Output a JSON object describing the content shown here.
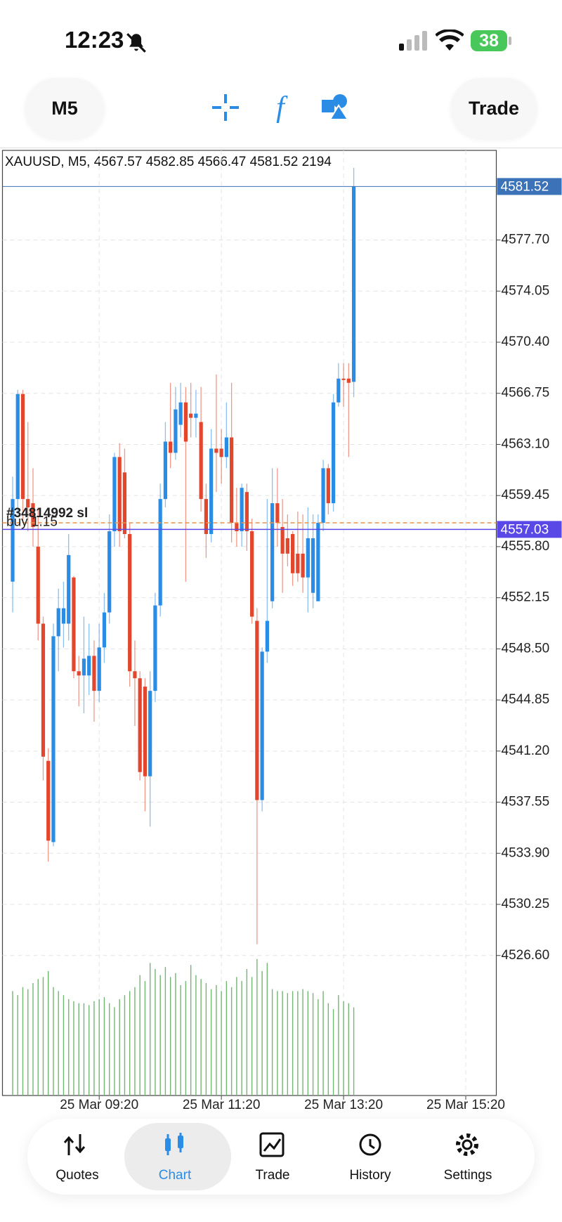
{
  "status_bar": {
    "time": "12:23",
    "battery": "38"
  },
  "toolbar": {
    "timeframe": "M5",
    "trade": "Trade"
  },
  "chart_data": {
    "type": "candlestick",
    "symbol": "XAUUSD",
    "timeframe": "M5",
    "open": [
      4553.3,
      4559.2,
      4566.7,
      4559.2,
      4558.9,
      4555.8,
      4550.3,
      4540.5,
      4534.7,
      4549.4,
      4550.3,
      4550.3,
      4553.6,
      4546.9,
      4546.6,
      4546.6,
      4548.0,
      4545.5,
      4548.6,
      4551.1,
      4556.9,
      4562.2,
      4561.1,
      4556.7,
      4546.9,
      4546.4,
      4545.8,
      4539.4,
      4545.5,
      4551.6,
      4559.2,
      4563.3,
      4562.5,
      4564.5,
      4566.1,
      4565.3,
      4565.0,
      4564.7,
      4559.2,
      4556.7,
      4562.8,
      4562.8,
      4562.2,
      4563.6,
      4557.5,
      4556.9,
      4559.7,
      4556.9,
      4550.5,
      4537.7,
      4548.3,
      4551.9,
      4558.9,
      4557.2,
      4556.4,
      4556.7,
      4555.3,
      4555.3,
      4553.6,
      4552.5,
      4551.9,
      4557.5,
      4561.4,
      4558.9,
      4566.1,
      4567.8,
      4567.8,
      4567.57
    ],
    "high": [
      4560.8,
      4567.0,
      4567.0,
      4564.7,
      4561.4,
      4558.6,
      4550.8,
      4541.4,
      4550.3,
      4552.8,
      4553.3,
      4556.7,
      4553.7,
      4548.0,
      4550.8,
      4550.3,
      4549.1,
      4550.3,
      4552.5,
      4558.1,
      4562.5,
      4563.2,
      4562.8,
      4557.5,
      4549.1,
      4546.9,
      4546.4,
      4546.9,
      4552.5,
      4560.3,
      4564.7,
      4567.5,
      4567.2,
      4567.5,
      4567.2,
      4567.5,
      4567.0,
      4567.2,
      4560.3,
      4564.2,
      4568.1,
      4564.2,
      4566.1,
      4567.5,
      4560.0,
      4560.3,
      4560.3,
      4557.8,
      4551.4,
      4548.6,
      4559.2,
      4561.4,
      4561.4,
      4559.2,
      4558.1,
      4556.9,
      4558.3,
      4558.1,
      4558.6,
      4558.1,
      4558.1,
      4562.0,
      4561.7,
      4566.7,
      4568.9,
      4568.9,
      4568.9,
      4582.85
    ],
    "low": [
      4551.1,
      4558.1,
      4557.5,
      4556.9,
      4555.8,
      4549.1,
      4539.1,
      4533.3,
      4534.4,
      4546.9,
      4548.6,
      4549.1,
      4546.4,
      4544.4,
      4543.9,
      4545.2,
      4543.3,
      4544.7,
      4547.5,
      4550.3,
      4555.8,
      4555.8,
      4556.4,
      4545.8,
      4543.0,
      4539.1,
      4536.9,
      4535.8,
      4544.7,
      4550.8,
      4558.6,
      4561.4,
      4562.0,
      4563.6,
      4553.3,
      4563.6,
      4563.6,
      4558.3,
      4555.0,
      4556.1,
      4559.7,
      4560.3,
      4561.4,
      4556.1,
      4555.8,
      4555.8,
      4555.5,
      4550.3,
      4527.4,
      4536.9,
      4547.5,
      4551.4,
      4555.8,
      4552.5,
      4554.4,
      4553.0,
      4553.3,
      4552.5,
      4551.1,
      4551.4,
      4551.9,
      4556.9,
      4558.1,
      4558.3,
      4565.8,
      4565.8,
      4562.2,
      4566.47
    ],
    "close": [
      4559.2,
      4566.7,
      4559.2,
      4558.6,
      4557.2,
      4550.3,
      4540.8,
      4534.8,
      4549.4,
      4551.4,
      4551.4,
      4555.2,
      4546.9,
      4546.6,
      4547.8,
      4548.0,
      4545.5,
      4548.6,
      4551.1,
      4556.9,
      4562.2,
      4556.9,
      4556.7,
      4546.9,
      4546.4,
      4539.7,
      4539.4,
      4545.5,
      4551.6,
      4559.2,
      4563.3,
      4562.5,
      4565.6,
      4566.1,
      4563.3,
      4565.0,
      4565.3,
      4559.2,
      4556.7,
      4562.8,
      4562.5,
      4562.2,
      4563.6,
      4557.5,
      4556.9,
      4560.0,
      4556.9,
      4550.8,
      4537.7,
      4548.3,
      4550.5,
      4558.9,
      4557.5,
      4555.3,
      4555.3,
      4553.9,
      4553.9,
      4553.6,
      4556.4,
      4556.4,
      4557.5,
      4561.4,
      4558.9,
      4566.1,
      4567.8,
      4567.7,
      4567.5,
      4581.52
    ],
    "volume": [
      2600,
      2500,
      2700,
      2650,
      2800,
      2900,
      2950,
      3100,
      2700,
      2600,
      2500,
      2400,
      2350,
      2300,
      2300,
      2250,
      2350,
      2400,
      2450,
      2300,
      2200,
      2400,
      2500,
      2600,
      2700,
      3000,
      2850,
      3300,
      3150,
      3000,
      3200,
      2950,
      3050,
      2750,
      2850,
      3250,
      3000,
      2900,
      2800,
      2650,
      2750,
      2600,
      2850,
      2700,
      2950,
      2850,
      3150,
      2950,
      3400,
      3100,
      3300,
      2650,
      2600,
      2600,
      2550,
      2600,
      2600,
      2650,
      2600,
      2550,
      2400,
      2600,
      2300,
      2150,
      2500,
      2350,
      2300,
      2194
    ],
    "volume_lim": [
      0,
      3500
    ],
    "colors": {
      "up": "#2b8ce6",
      "down": "#e2462c",
      "volume": "#74b574",
      "bid": "#3b72b8"
    },
    "ylim": [
      4516.6,
      4584.1
    ],
    "yticks": [
      {
        "value": 4577.7,
        "label": "4577.70"
      },
      4574.05,
      {
        "value": 4570.4,
        "label": "4570.40"
      },
      4566.75,
      {
        "value": 4563.1,
        "label": "4563.10"
      },
      4559.45,
      {
        "value": 4555.8,
        "label": "4555.80"
      },
      4552.15,
      {
        "value": 4548.5,
        "label": "4548.50"
      },
      4544.85,
      {
        "value": 4541.2,
        "label": "4541.20"
      },
      4537.55,
      {
        "value": 4533.9,
        "label": "4533.90"
      },
      4530.25,
      {
        "value": 4526.6,
        "label": "4526.60"
      }
    ],
    "xlim": [
      -2,
      95
    ],
    "xticks": [
      {
        "value": 17,
        "label": "25 Mar 09:20"
      },
      {
        "value": 41,
        "label": "25 Mar 11:20"
      },
      {
        "value": 65,
        "label": "25 Mar 13:20"
      },
      {
        "value": 89,
        "label": "25 Mar 15:20"
      }
    ],
    "grid": true,
    "position": {
      "label": "buy 1.15",
      "price": 4557.03,
      "color": "#5a48e6"
    },
    "stop": {
      "label": "#34814992 sl",
      "price": 4557.5,
      "color": "#e8944c"
    }
  },
  "tabs": [
    {
      "label": "Quotes"
    },
    {
      "label": "Chart"
    },
    {
      "label": "Trade"
    },
    {
      "label": "History"
    },
    {
      "label": "Settings"
    }
  ],
  "active_tab": 1
}
